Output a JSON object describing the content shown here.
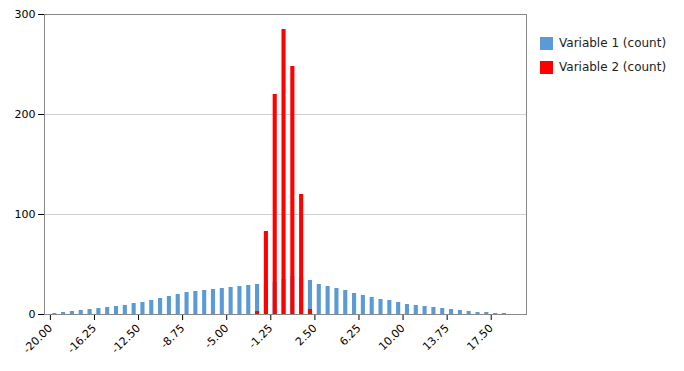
{
  "chart_data": {
    "type": "bar",
    "series": [
      {
        "name": "Variable 1 (count)",
        "color": "#5B9BD5",
        "x": [
          -19.625,
          -18.875,
          -18.125,
          -17.375,
          -16.625,
          -15.875,
          -15.125,
          -14.375,
          -13.625,
          -12.875,
          -12.125,
          -11.375,
          -10.625,
          -9.875,
          -9.125,
          -8.375,
          -7.625,
          -6.875,
          -6.125,
          -5.375,
          -4.625,
          -3.875,
          -3.125,
          -2.375,
          -1.625,
          -0.875,
          -0.125,
          0.625,
          1.375,
          2.125,
          2.875,
          3.625,
          4.375,
          5.125,
          5.875,
          6.625,
          7.375,
          8.125,
          8.875,
          9.625,
          10.375,
          11.125,
          11.875,
          12.625,
          13.375,
          14.125,
          14.875,
          15.625,
          16.375,
          17.125,
          17.875,
          18.625
        ],
        "values": [
          1,
          2,
          3,
          4,
          5,
          6,
          7,
          8,
          9,
          11,
          12,
          14,
          16,
          18,
          20,
          22,
          23,
          24,
          25,
          26,
          27,
          28,
          29,
          30,
          31,
          32,
          35,
          38,
          36,
          34,
          30,
          28,
          26,
          24,
          21,
          19,
          17,
          15,
          14,
          12,
          10,
          9,
          8,
          7,
          6,
          5,
          4,
          3,
          2,
          2,
          1,
          1
        ]
      },
      {
        "name": "Variable 2 (count)",
        "color": "#FF0000",
        "x": [
          -2.375,
          -1.625,
          -0.875,
          -0.125,
          0.625,
          1.375,
          2.125
        ],
        "values": [
          3,
          83,
          220,
          285,
          248,
          120,
          5
        ]
      }
    ],
    "xlim": [
      -20.5,
      20.5
    ],
    "xticks": [
      {
        "value": -20,
        "label": "-20.00"
      },
      -16.25,
      {
        "value": -12.5,
        "label": "-12.50"
      },
      -8.75,
      {
        "value": -5,
        "label": "-5.00"
      },
      -1.25,
      {
        "value": 2.5,
        "label": "2.50"
      },
      6.25,
      {
        "value": 10,
        "label": "10.00"
      },
      13.75,
      {
        "value": 17.5,
        "label": "17.50"
      }
    ],
    "ylim": [
      0,
      300
    ],
    "yticks": [
      0,
      100,
      200,
      300
    ],
    "grid": true,
    "legend": "upper right"
  }
}
